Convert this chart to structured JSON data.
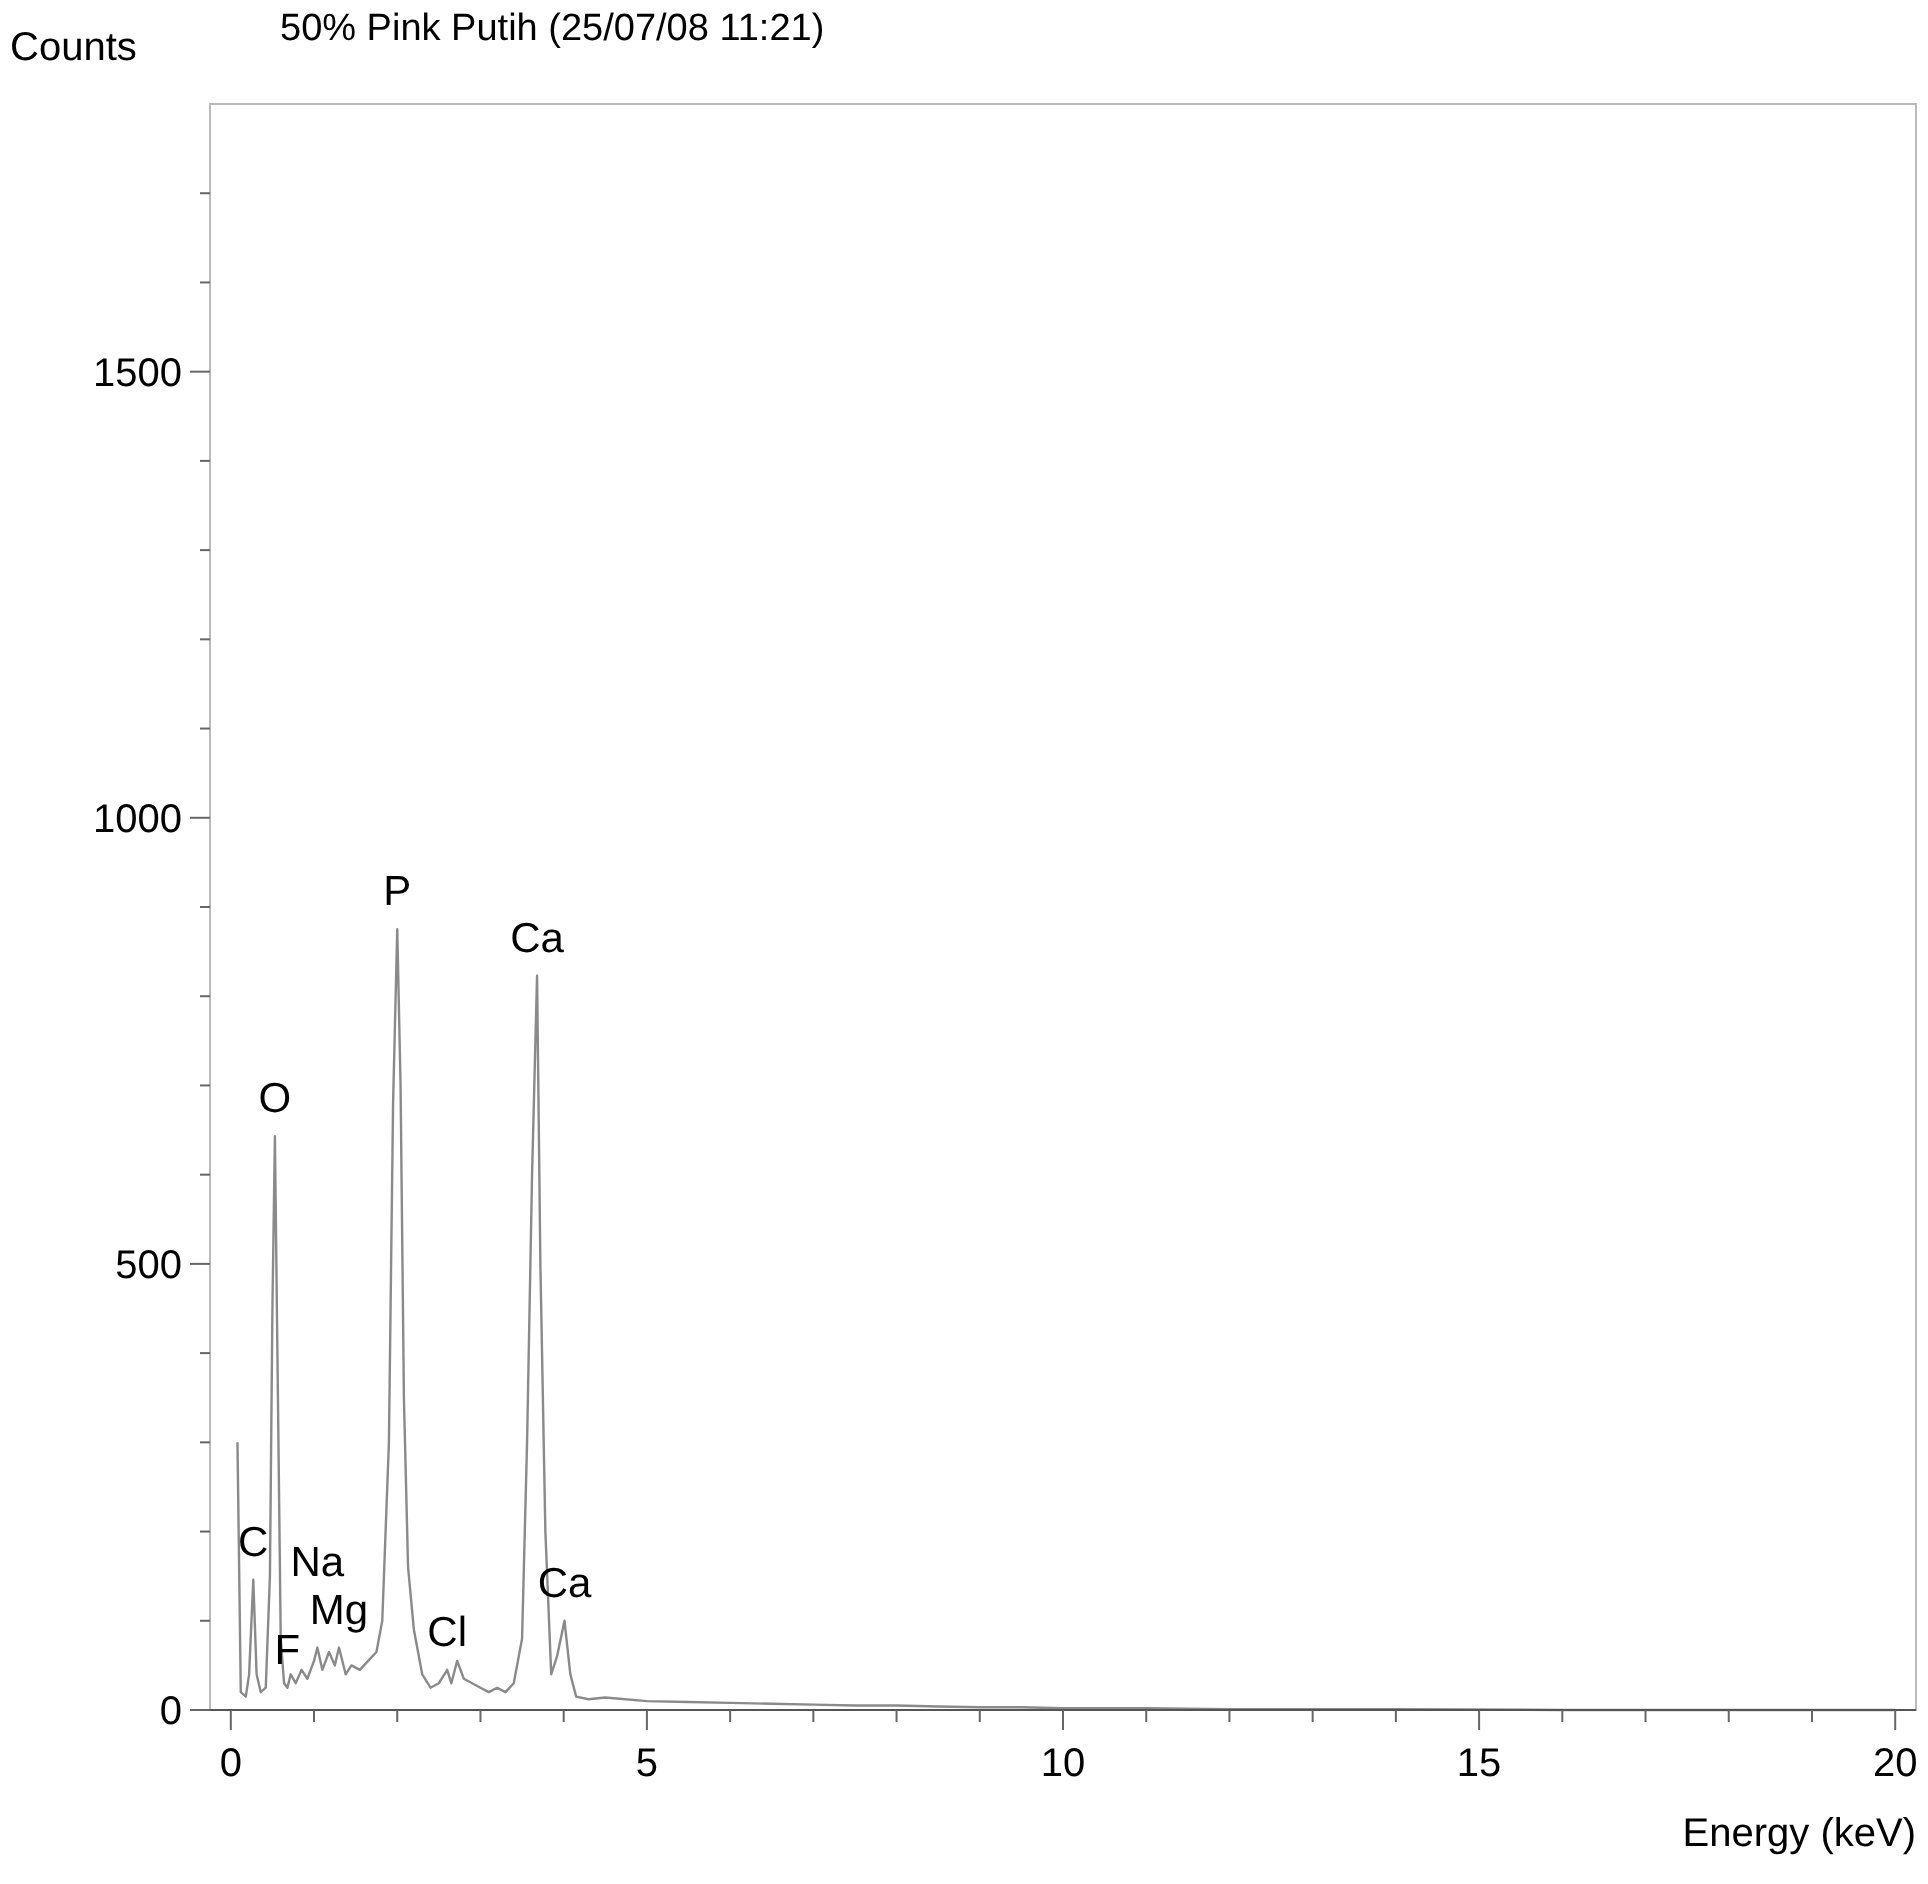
{
  "chart_data": {
    "type": "line",
    "title": "50% Pink Putih (25/07/08 11:21)",
    "xlabel": "Energy (keV)",
    "ylabel": "Counts",
    "xlim": [
      -0.25,
      20.25
    ],
    "ylim": [
      0,
      1800
    ],
    "xticks": [
      0,
      {
        "value": 1,
        "label": null
      },
      {
        "value": 2,
        "label": null
      },
      {
        "value": 3,
        "label": null
      },
      {
        "value": 4,
        "label": null
      },
      5,
      {
        "value": 6,
        "label": null
      },
      {
        "value": 7,
        "label": null
      },
      {
        "value": 8,
        "label": null
      },
      {
        "value": 9,
        "label": null
      },
      10,
      {
        "value": 11,
        "label": null
      },
      {
        "value": 12,
        "label": null
      },
      {
        "value": 13,
        "label": null
      },
      {
        "value": 14,
        "label": null
      },
      15,
      {
        "value": 16,
        "label": null
      },
      {
        "value": 17,
        "label": null
      },
      {
        "value": 18,
        "label": null
      },
      {
        "value": 19,
        "label": null
      },
      20
    ],
    "yticks": [
      0,
      {
        "value": 100,
        "label": null
      },
      {
        "value": 200,
        "label": null
      },
      {
        "value": 300,
        "label": null
      },
      {
        "value": 400,
        "label": null
      },
      500,
      {
        "value": 600,
        "label": null
      },
      {
        "value": 700,
        "label": null
      },
      {
        "value": 800,
        "label": null
      },
      {
        "value": 900,
        "label": null
      },
      1000,
      {
        "value": 1100,
        "label": null
      },
      {
        "value": 1200,
        "label": null
      },
      {
        "value": 1300,
        "label": null
      },
      {
        "value": 1400,
        "label": null
      },
      1500,
      {
        "value": 1600,
        "label": null
      },
      {
        "value": 1700,
        "label": null
      }
    ],
    "grid": false,
    "marker": "none",
    "line_style": "solid",
    "series": [
      {
        "color": "#8a8a8a",
        "x": [
          0.08,
          0.12,
          0.18,
          0.22,
          0.27,
          0.31,
          0.36,
          0.42,
          0.47,
          0.5,
          0.53,
          0.56,
          0.6,
          0.64,
          0.68,
          0.72,
          0.78,
          0.85,
          0.92,
          1.0,
          1.04,
          1.1,
          1.18,
          1.25,
          1.3,
          1.38,
          1.45,
          1.55,
          1.65,
          1.75,
          1.82,
          1.9,
          1.95,
          2.0,
          2.04,
          2.08,
          2.13,
          2.2,
          2.3,
          2.4,
          2.5,
          2.6,
          2.65,
          2.72,
          2.8,
          2.9,
          3.0,
          3.1,
          3.2,
          3.3,
          3.4,
          3.5,
          3.56,
          3.62,
          3.68,
          3.72,
          3.78,
          3.85,
          3.92,
          4.01,
          4.08,
          4.15,
          4.3,
          4.5,
          5,
          5.5,
          6,
          6.5,
          7,
          7.5,
          8,
          8.5,
          9,
          9.5,
          10,
          11,
          12,
          14,
          16,
          18,
          20
        ],
        "values": [
          300,
          20,
          15,
          40,
          146,
          40,
          20,
          25,
          150,
          450,
          643,
          400,
          80,
          30,
          25,
          40,
          30,
          45,
          35,
          55,
          70,
          45,
          65,
          50,
          70,
          40,
          50,
          45,
          55,
          65,
          100,
          300,
          680,
          875,
          700,
          350,
          160,
          90,
          40,
          25,
          30,
          45,
          30,
          55,
          35,
          30,
          25,
          20,
          25,
          20,
          30,
          80,
          300,
          600,
          823,
          500,
          200,
          40,
          60,
          100,
          40,
          15,
          12,
          14,
          10,
          9,
          8,
          7,
          6,
          5,
          5,
          4,
          3,
          3,
          2,
          2,
          1,
          1,
          0,
          0,
          0
        ]
      }
    ],
    "annotations": [
      {
        "text": "C",
        "x": 0.27,
        "y": 146
      },
      {
        "text": "O",
        "x": 0.53,
        "y": 643
      },
      {
        "text": "F",
        "x": 0.68,
        "y": 25
      },
      {
        "text": "Na",
        "x": 1.04,
        "y": 70
      },
      {
        "text": "Mg",
        "x": 1.3,
        "y": 70
      },
      {
        "text": "P",
        "x": 2.0,
        "y": 875
      },
      {
        "text": "Cl",
        "x": 2.6,
        "y": 45
      },
      {
        "text": "Ca",
        "x": 3.68,
        "y": 823
      },
      {
        "text": "Ca",
        "x": 4.01,
        "y": 100
      }
    ]
  }
}
